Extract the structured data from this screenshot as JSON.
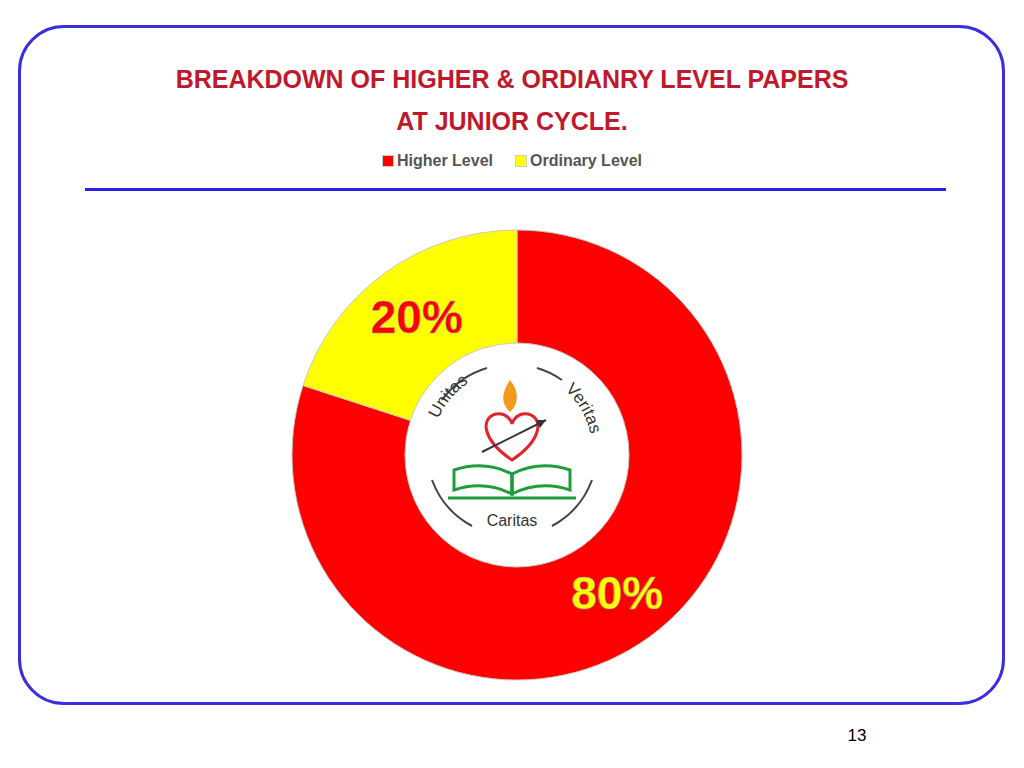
{
  "chart_data": {
    "type": "pie",
    "title": "BREAKDOWN OF HIGHER & ORDIANRY LEVEL PAPERS\nAT JUNIOR CYCLE.",
    "categories": [
      "Higher Level",
      "Ordinary Level"
    ],
    "values": [
      80,
      20
    ],
    "value_labels": [
      "80%",
      "20%"
    ],
    "colors": [
      "#ff0000",
      "#ffff00"
    ],
    "data_labels": true,
    "legend": "top"
  },
  "logo": {
    "texts": [
      "Unitas",
      "Veritas",
      "Caritas"
    ]
  },
  "page_number": 13
}
